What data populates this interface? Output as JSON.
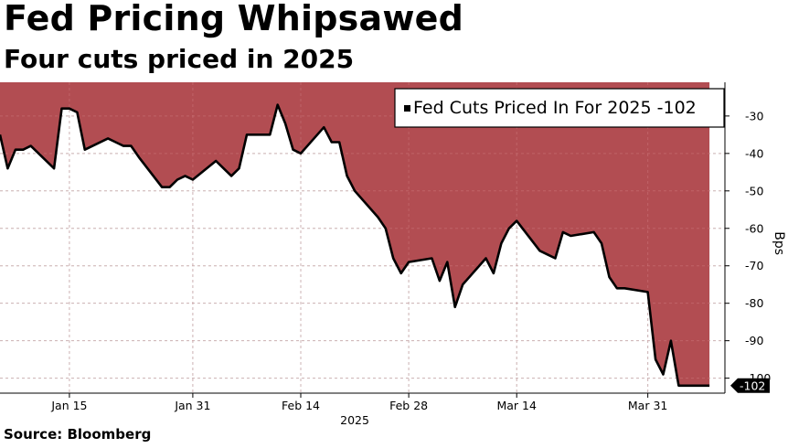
{
  "header": {
    "title": "Fed Pricing Whipsawed",
    "subtitle": "Four cuts priced in 2025"
  },
  "footer": {
    "source": "Source: Bloomberg"
  },
  "colors": {
    "area_fill": "#b24d52",
    "line": "#000000",
    "grid": "#c8c8c8",
    "background": "#ffffff"
  },
  "chart_data": {
    "type": "area",
    "title": "Fed Pricing Whipsawed",
    "subtitle": "Four cuts priced in 2025",
    "ylabel": "Bps",
    "y_axis_side": "right",
    "ylim": [
      -104,
      -21
    ],
    "yticks": [
      -30,
      -40,
      -50,
      -60,
      -70,
      -80,
      -90,
      -100
    ],
    "ytick_labels": [
      "-30",
      "-40",
      "-50",
      "-60",
      "-70",
      "-80",
      "-90",
      "-100"
    ],
    "xlim": [
      "2025-01-06",
      "2025-04-10"
    ],
    "xticks": [
      "2025-01-15",
      "2025-01-31",
      "2025-02-14",
      "2025-02-28",
      "2025-03-14",
      "2025-03-31"
    ],
    "xtick_labels": [
      "Jan 15",
      "Jan 31",
      "Feb 14",
      "Feb 28",
      "Mar 14",
      "Mar 31"
    ],
    "xaxis_year_label": "2025",
    "grid": "vertical and horizontal dashed",
    "fill": "area above line filled to top of plot",
    "legend": {
      "position": "top-right",
      "entries": [
        "Fed Cuts Priced In For 2025 -102"
      ]
    },
    "last_value_label": "-102",
    "series": [
      {
        "name": "Fed Cuts Priced In For 2025",
        "x": [
          "2025-01-06",
          "2025-01-07",
          "2025-01-08",
          "2025-01-09",
          "2025-01-10",
          "2025-01-13",
          "2025-01-14",
          "2025-01-15",
          "2025-01-16",
          "2025-01-17",
          "2025-01-20",
          "2025-01-21",
          "2025-01-22",
          "2025-01-23",
          "2025-01-24",
          "2025-01-27",
          "2025-01-28",
          "2025-01-29",
          "2025-01-30",
          "2025-01-31",
          "2025-02-03",
          "2025-02-04",
          "2025-02-05",
          "2025-02-06",
          "2025-02-07",
          "2025-02-10",
          "2025-02-11",
          "2025-02-12",
          "2025-02-13",
          "2025-02-14",
          "2025-02-17",
          "2025-02-18",
          "2025-02-19",
          "2025-02-20",
          "2025-02-21",
          "2025-02-24",
          "2025-02-25",
          "2025-02-26",
          "2025-02-27",
          "2025-02-28",
          "2025-03-03",
          "2025-03-04",
          "2025-03-05",
          "2025-03-06",
          "2025-03-07",
          "2025-03-10",
          "2025-03-11",
          "2025-03-12",
          "2025-03-13",
          "2025-03-14",
          "2025-03-17",
          "2025-03-18",
          "2025-03-19",
          "2025-03-20",
          "2025-03-21",
          "2025-03-24",
          "2025-03-25",
          "2025-03-26",
          "2025-03-27",
          "2025-03-28",
          "2025-03-31",
          "2025-04-01",
          "2025-04-02",
          "2025-04-03",
          "2025-04-04",
          "2025-04-07",
          "2025-04-08"
        ],
        "values": [
          -35,
          -44,
          -39,
          -39,
          -38,
          -44,
          -28,
          -28,
          -29,
          -39,
          -36,
          -37,
          -38,
          -38,
          -41,
          -49,
          -49,
          -47,
          -46,
          -47,
          -42,
          -44,
          -46,
          -44,
          -35,
          -35,
          -27,
          -32,
          -39,
          -40,
          -33,
          -37,
          -37,
          -46,
          -50,
          -57,
          -60,
          -68,
          -72,
          -69,
          -68,
          -74,
          -69,
          -81,
          -75,
          -68,
          -72,
          -64,
          -60,
          -58,
          -66,
          -67,
          -68,
          -61,
          -62,
          -61,
          -64,
          -73,
          -76,
          -76,
          -77,
          -95,
          -99,
          -90,
          -102,
          -102,
          -102
        ]
      }
    ]
  }
}
